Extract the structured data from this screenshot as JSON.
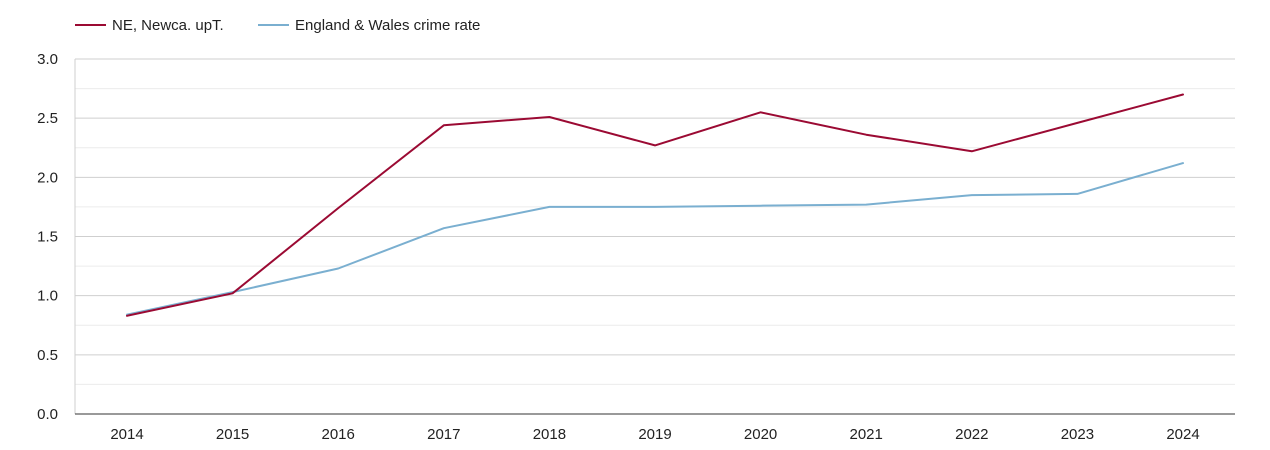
{
  "chart_data": {
    "type": "line",
    "x": [
      "2014",
      "2015",
      "2016",
      "2017",
      "2018",
      "2019",
      "2020",
      "2021",
      "2022",
      "2023",
      "2024"
    ],
    "series": [
      {
        "name": "NE, Newca. upT.",
        "color": "#9b0a33",
        "values": [
          0.83,
          1.02,
          1.74,
          2.44,
          2.51,
          2.27,
          2.55,
          2.36,
          2.22,
          2.46,
          2.7
        ]
      },
      {
        "name": "England & Wales crime rate",
        "color": "#7aafd0",
        "values": [
          0.84,
          1.03,
          1.23,
          1.57,
          1.75,
          1.75,
          1.76,
          1.77,
          1.85,
          1.86,
          2.12
        ]
      }
    ],
    "yticks": [
      "0.0",
      "0.5",
      "1.0",
      "1.5",
      "2.0",
      "2.5",
      "3.0"
    ],
    "ylim": [
      0,
      3
    ],
    "grid": true,
    "legend": "top-left",
    "title": "",
    "xlabel": "",
    "ylabel": ""
  }
}
